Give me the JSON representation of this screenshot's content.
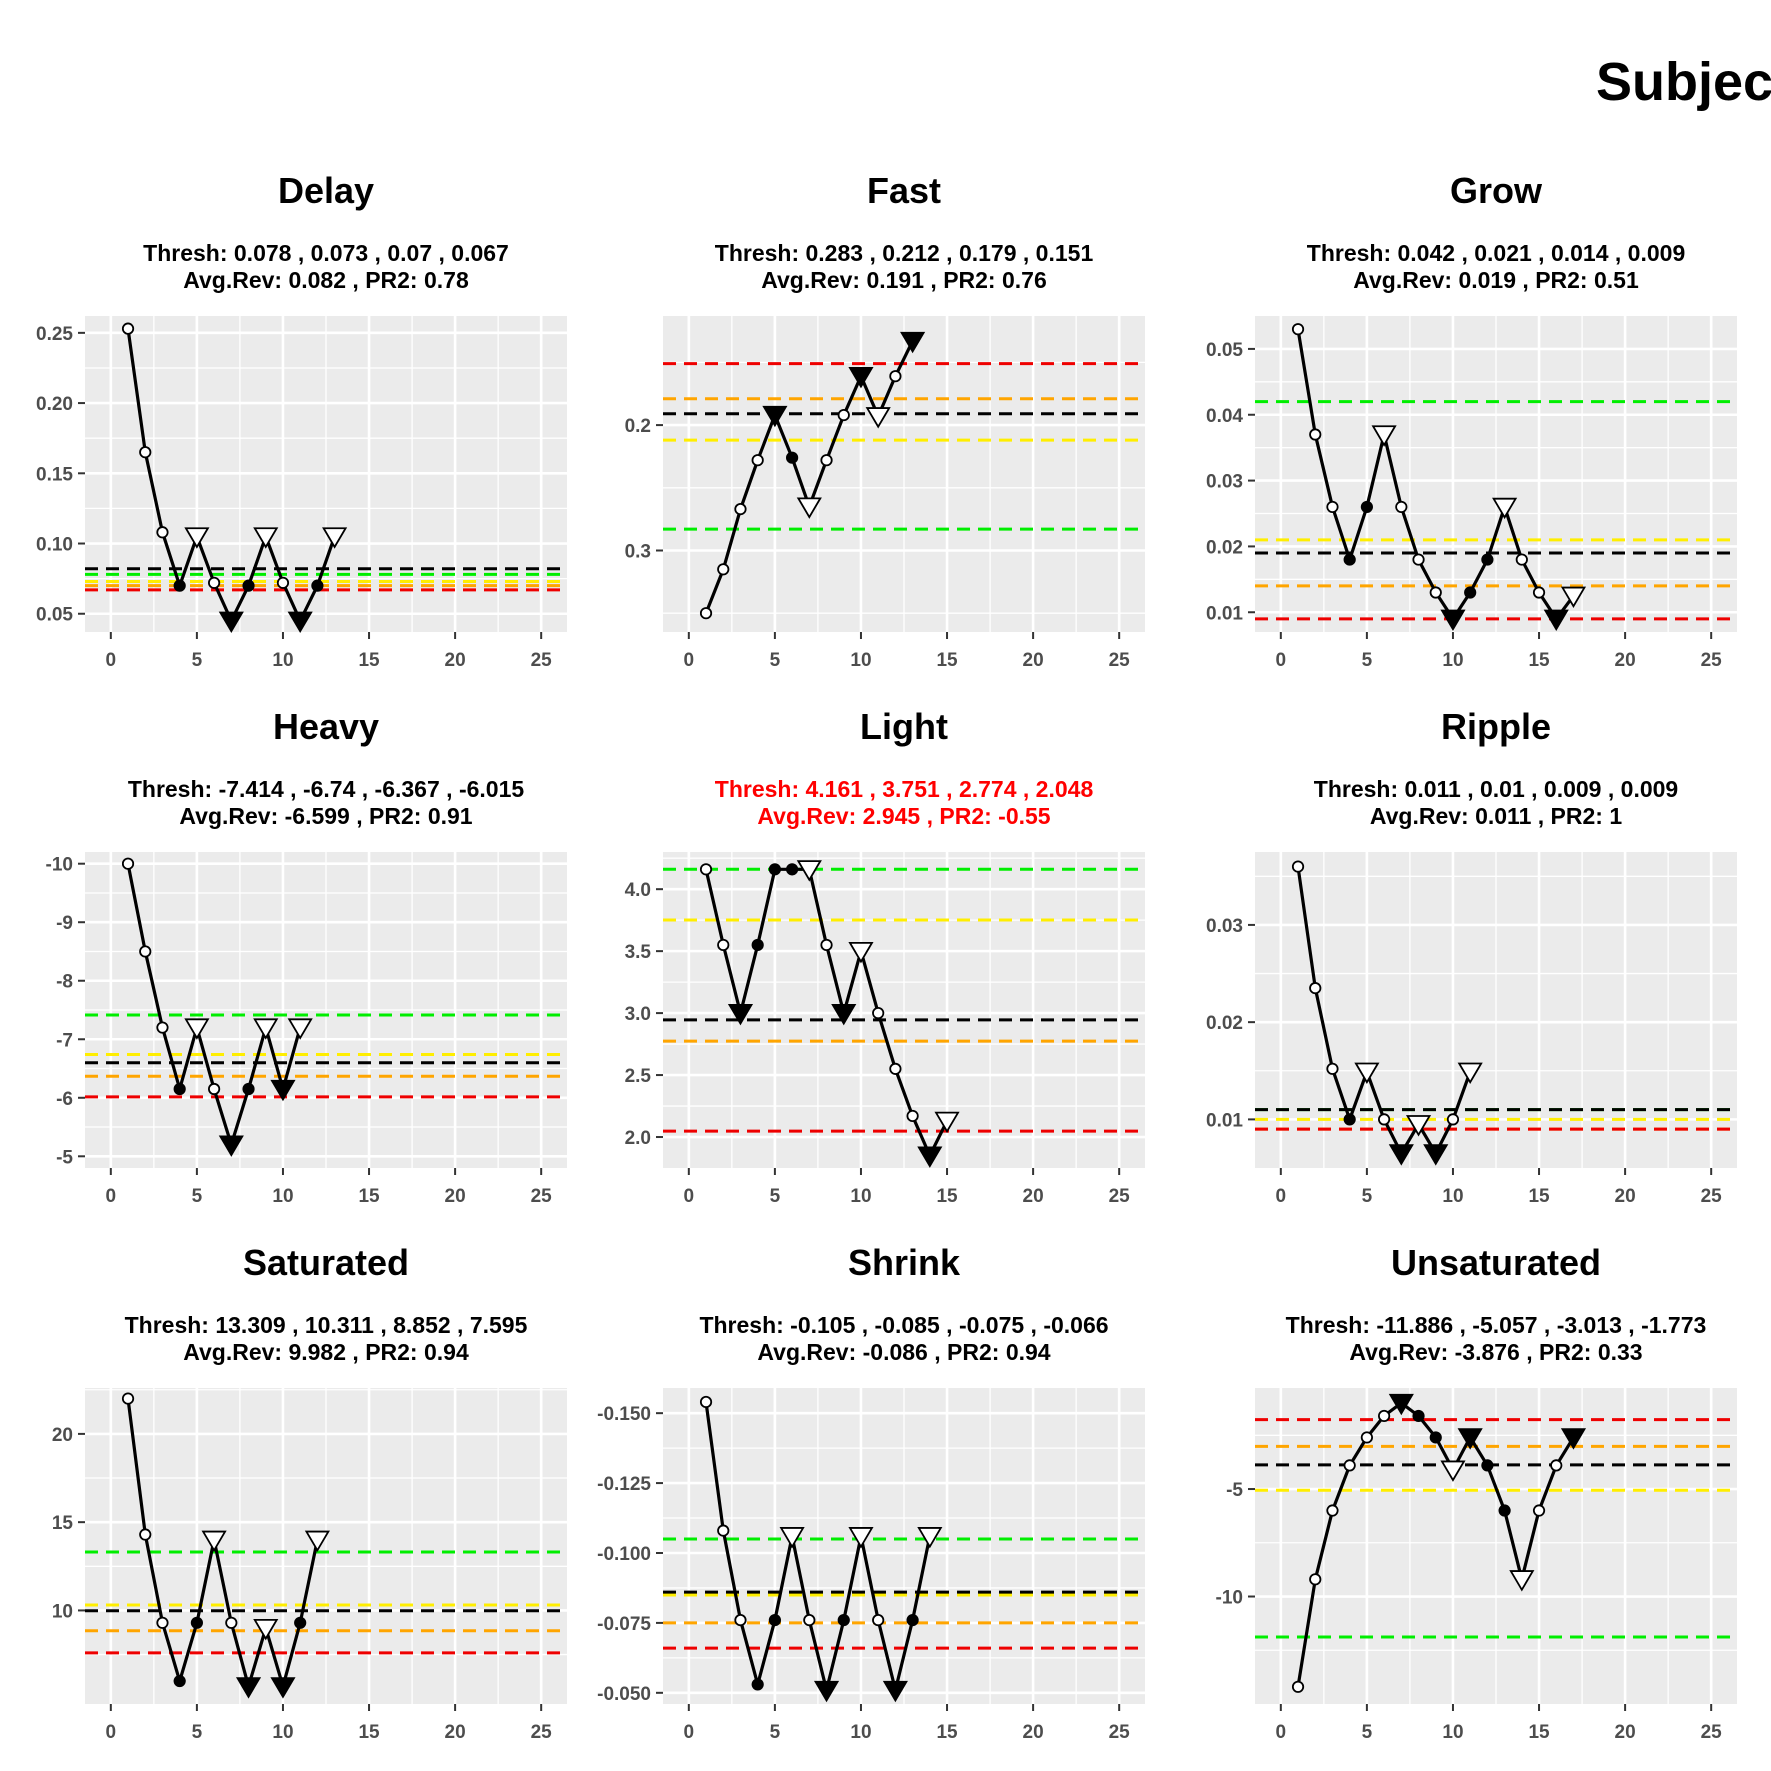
{
  "figure": {
    "title": "Subjec",
    "colors": {
      "panel_bg": "#ebebeb",
      "grid": "#ffffff",
      "line": "#000000",
      "thresholds": [
        "#00ee00",
        "#ffee00",
        "#ffa500",
        "#ee0000"
      ],
      "avg_reversal": "#000000",
      "warning_text": "#ff0000"
    },
    "marker_legend": {
      "open-circle": "trial",
      "filled-circle": "trial",
      "open-triangle-down": "reversal",
      "filled-triangle-down": "reversal"
    }
  },
  "chart_data": [
    {
      "type": "line",
      "title": "Delay",
      "subtitle1": "Thresh: 0.078 , 0.073 , 0.07 , 0.067",
      "subtitle2": "Avg.Rev: 0.082 , PR2: 0.78",
      "warning": false,
      "xlim": [
        -1.5,
        26.5
      ],
      "ylim": [
        0.037,
        0.262
      ],
      "yreverse": false,
      "xticks": [
        0,
        5,
        10,
        15,
        20,
        25
      ],
      "yticks": [
        0.05,
        0.1,
        0.15,
        0.2,
        0.25
      ],
      "yticklabels": [
        "0.05",
        "0.10",
        "0.15",
        "0.20",
        "0.25"
      ],
      "thresholds": [
        0.078,
        0.073,
        0.07,
        0.067
      ],
      "avg_reversal": 0.082,
      "points": [
        {
          "x": 1,
          "y": 0.253,
          "m": "oc"
        },
        {
          "x": 2,
          "y": 0.165,
          "m": "oc"
        },
        {
          "x": 3,
          "y": 0.108,
          "m": "oc"
        },
        {
          "x": 4,
          "y": 0.07,
          "m": "fc"
        },
        {
          "x": 5,
          "y": 0.105,
          "m": "ot"
        },
        {
          "x": 6,
          "y": 0.072,
          "m": "oc"
        },
        {
          "x": 7,
          "y": 0.045,
          "m": "ft"
        },
        {
          "x": 8,
          "y": 0.07,
          "m": "fc"
        },
        {
          "x": 9,
          "y": 0.105,
          "m": "ot"
        },
        {
          "x": 10,
          "y": 0.072,
          "m": "oc"
        },
        {
          "x": 11,
          "y": 0.045,
          "m": "ft"
        },
        {
          "x": 12,
          "y": 0.07,
          "m": "fc"
        },
        {
          "x": 13,
          "y": 0.105,
          "m": "ot"
        }
      ]
    },
    {
      "type": "line",
      "title": "Fast",
      "subtitle1": "Thresh: 0.283 , 0.212 , 0.179 , 0.151",
      "subtitle2": "Avg.Rev: 0.191 , PR2: 0.76",
      "warning": false,
      "xlim": [
        -1.5,
        26.5
      ],
      "ylim": [
        0.113,
        0.365
      ],
      "yreverse": true,
      "xticks": [
        0,
        5,
        10,
        15,
        20,
        25
      ],
      "yticks": [
        0.2,
        0.3
      ],
      "yticklabels": [
        "0.2",
        "0.3"
      ],
      "thresholds": [
        0.283,
        0.212,
        0.179,
        0.151
      ],
      "avg_reversal": 0.191,
      "points": [
        {
          "x": 1,
          "y": 0.35,
          "m": "oc"
        },
        {
          "x": 2,
          "y": 0.315,
          "m": "oc"
        },
        {
          "x": 3,
          "y": 0.267,
          "m": "oc"
        },
        {
          "x": 4,
          "y": 0.228,
          "m": "oc"
        },
        {
          "x": 5,
          "y": 0.192,
          "m": "ft"
        },
        {
          "x": 6,
          "y": 0.226,
          "m": "fc"
        },
        {
          "x": 7,
          "y": 0.265,
          "m": "ot"
        },
        {
          "x": 8,
          "y": 0.228,
          "m": "oc"
        },
        {
          "x": 9,
          "y": 0.192,
          "m": "oc"
        },
        {
          "x": 10,
          "y": 0.161,
          "m": "ft"
        },
        {
          "x": 11,
          "y": 0.193,
          "m": "ot"
        },
        {
          "x": 12,
          "y": 0.161,
          "m": "oc"
        },
        {
          "x": 13,
          "y": 0.133,
          "m": "ft"
        }
      ]
    },
    {
      "type": "line",
      "title": "Grow",
      "subtitle1": "Thresh: 0.042 , 0.021 , 0.014 , 0.009",
      "subtitle2": "Avg.Rev: 0.019 , PR2: 0.51",
      "warning": false,
      "xlim": [
        -1.5,
        26.5
      ],
      "ylim": [
        0.007,
        0.055
      ],
      "yreverse": false,
      "xticks": [
        0,
        5,
        10,
        15,
        20,
        25
      ],
      "yticks": [
        0.01,
        0.02,
        0.03,
        0.04,
        0.05
      ],
      "yticklabels": [
        "0.01",
        "0.02",
        "0.03",
        "0.04",
        "0.05"
      ],
      "thresholds": [
        0.042,
        0.021,
        0.014,
        0.009
      ],
      "avg_reversal": 0.019,
      "points": [
        {
          "x": 1,
          "y": 0.053,
          "m": "oc"
        },
        {
          "x": 2,
          "y": 0.037,
          "m": "oc"
        },
        {
          "x": 3,
          "y": 0.026,
          "m": "oc"
        },
        {
          "x": 4,
          "y": 0.018,
          "m": "fc"
        },
        {
          "x": 5,
          "y": 0.026,
          "m": "fc"
        },
        {
          "x": 6,
          "y": 0.037,
          "m": "ot"
        },
        {
          "x": 7,
          "y": 0.026,
          "m": "oc"
        },
        {
          "x": 8,
          "y": 0.018,
          "m": "oc"
        },
        {
          "x": 9,
          "y": 0.013,
          "m": "oc"
        },
        {
          "x": 10,
          "y": 0.009,
          "m": "ft"
        },
        {
          "x": 11,
          "y": 0.013,
          "m": "fc"
        },
        {
          "x": 12,
          "y": 0.018,
          "m": "fc"
        },
        {
          "x": 13,
          "y": 0.026,
          "m": "ot"
        },
        {
          "x": 14,
          "y": 0.018,
          "m": "oc"
        },
        {
          "x": 15,
          "y": 0.013,
          "m": "oc"
        },
        {
          "x": 16,
          "y": 0.009,
          "m": "ft"
        },
        {
          "x": 17,
          "y": 0.0125,
          "m": "ot"
        }
      ]
    },
    {
      "type": "line",
      "title": "Heavy",
      "subtitle1": "Thresh: -7.414 , -6.74 , -6.367 , -6.015",
      "subtitle2": "Avg.Rev: -6.599 , PR2: 0.91",
      "warning": false,
      "xlim": [
        -1.5,
        26.5
      ],
      "ylim": [
        -10.2,
        -4.8
      ],
      "yreverse": true,
      "xticks": [
        0,
        5,
        10,
        15,
        20,
        25
      ],
      "yticks": [
        -10,
        -9,
        -8,
        -7,
        -6,
        -5
      ],
      "yticklabels": [
        "-10",
        "-9",
        "-8",
        "-7",
        "-6",
        "-5"
      ],
      "thresholds": [
        -7.414,
        -6.74,
        -6.367,
        -6.015
      ],
      "avg_reversal": -6.599,
      "points": [
        {
          "x": 1,
          "y": -10.0,
          "m": "oc"
        },
        {
          "x": 2,
          "y": -8.5,
          "m": "oc"
        },
        {
          "x": 3,
          "y": -7.2,
          "m": "oc"
        },
        {
          "x": 4,
          "y": -6.15,
          "m": "fc"
        },
        {
          "x": 5,
          "y": -7.2,
          "m": "ot"
        },
        {
          "x": 6,
          "y": -6.15,
          "m": "oc"
        },
        {
          "x": 7,
          "y": -5.2,
          "m": "ft"
        },
        {
          "x": 8,
          "y": -6.15,
          "m": "fc"
        },
        {
          "x": 9,
          "y": -7.2,
          "m": "ot"
        },
        {
          "x": 10,
          "y": -6.15,
          "m": "ft"
        },
        {
          "x": 11,
          "y": -7.2,
          "m": "ot"
        }
      ]
    },
    {
      "type": "line",
      "title": "Light",
      "subtitle1": "Thresh: 4.161 , 3.751 , 2.774 , 2.048",
      "subtitle2": "Avg.Rev: 2.945 , PR2: -0.55",
      "warning": true,
      "xlim": [
        -1.5,
        26.5
      ],
      "ylim": [
        1.75,
        4.3
      ],
      "yreverse": false,
      "xticks": [
        0,
        5,
        10,
        15,
        20,
        25
      ],
      "yticks": [
        2.0,
        2.5,
        3.0,
        3.5,
        4.0
      ],
      "yticklabels": [
        "2.0",
        "2.5",
        "3.0",
        "3.5",
        "4.0"
      ],
      "thresholds": [
        4.161,
        3.751,
        2.774,
        2.048
      ],
      "avg_reversal": 2.945,
      "points": [
        {
          "x": 1,
          "y": 4.16,
          "m": "oc"
        },
        {
          "x": 2,
          "y": 3.55,
          "m": "oc"
        },
        {
          "x": 3,
          "y": 3.0,
          "m": "ft"
        },
        {
          "x": 4,
          "y": 3.55,
          "m": "fc"
        },
        {
          "x": 5,
          "y": 4.16,
          "m": "fc"
        },
        {
          "x": 6,
          "y": 4.16,
          "m": "fc"
        },
        {
          "x": 7,
          "y": 4.16,
          "m": "ot"
        },
        {
          "x": 8,
          "y": 3.55,
          "m": "oc"
        },
        {
          "x": 9,
          "y": 3.0,
          "m": "ft"
        },
        {
          "x": 10,
          "y": 3.5,
          "m": "ot"
        },
        {
          "x": 11,
          "y": 3.0,
          "m": "oc"
        },
        {
          "x": 12,
          "y": 2.55,
          "m": "oc"
        },
        {
          "x": 13,
          "y": 2.17,
          "m": "oc"
        },
        {
          "x": 14,
          "y": 1.85,
          "m": "ft"
        },
        {
          "x": 15,
          "y": 2.13,
          "m": "ot"
        }
      ]
    },
    {
      "type": "line",
      "title": "Ripple",
      "subtitle1": "Thresh: 0.011 , 0.01 , 0.009 , 0.009",
      "subtitle2": "Avg.Rev: 0.011 , PR2: 1",
      "warning": false,
      "xlim": [
        -1.5,
        26.5
      ],
      "ylim": [
        0.005,
        0.0375
      ],
      "yreverse": false,
      "xticks": [
        0,
        5,
        10,
        15,
        20,
        25
      ],
      "yticks": [
        0.01,
        0.02,
        0.03
      ],
      "yticklabels": [
        "0.01",
        "0.02",
        "0.03"
      ],
      "thresholds": [
        0.011,
        0.01,
        0.009,
        0.009
      ],
      "avg_reversal": 0.011,
      "points": [
        {
          "x": 1,
          "y": 0.036,
          "m": "oc"
        },
        {
          "x": 2,
          "y": 0.0235,
          "m": "oc"
        },
        {
          "x": 3,
          "y": 0.0152,
          "m": "oc"
        },
        {
          "x": 4,
          "y": 0.01,
          "m": "fc"
        },
        {
          "x": 5,
          "y": 0.0149,
          "m": "ot"
        },
        {
          "x": 6,
          "y": 0.01,
          "m": "oc"
        },
        {
          "x": 7,
          "y": 0.0065,
          "m": "ft"
        },
        {
          "x": 8,
          "y": 0.0095,
          "m": "ot"
        },
        {
          "x": 9,
          "y": 0.0065,
          "m": "ft"
        },
        {
          "x": 10,
          "y": 0.01,
          "m": "oc"
        },
        {
          "x": 11,
          "y": 0.0149,
          "m": "ot"
        }
      ]
    },
    {
      "type": "line",
      "title": "Saturated",
      "subtitle1": "Thresh: 13.309 , 10.311 , 8.852 , 7.595",
      "subtitle2": "Avg.Rev: 9.982 , PR2: 0.94",
      "warning": false,
      "xlim": [
        -1.5,
        26.5
      ],
      "ylim": [
        4.7,
        22.6
      ],
      "yreverse": false,
      "xticks": [
        0,
        5,
        10,
        15,
        20,
        25
      ],
      "yticks": [
        10,
        15,
        20
      ],
      "yticklabels": [
        "10",
        "15",
        "20"
      ],
      "thresholds": [
        13.309,
        10.311,
        8.852,
        7.595
      ],
      "avg_reversal": 9.982,
      "points": [
        {
          "x": 1,
          "y": 22.0,
          "m": "oc"
        },
        {
          "x": 2,
          "y": 14.3,
          "m": "oc"
        },
        {
          "x": 3,
          "y": 9.3,
          "m": "oc"
        },
        {
          "x": 4,
          "y": 6.0,
          "m": "fc"
        },
        {
          "x": 5,
          "y": 9.3,
          "m": "fc"
        },
        {
          "x": 6,
          "y": 14.0,
          "m": "ot"
        },
        {
          "x": 7,
          "y": 9.3,
          "m": "oc"
        },
        {
          "x": 8,
          "y": 5.7,
          "m": "ft"
        },
        {
          "x": 9,
          "y": 9.0,
          "m": "ot"
        },
        {
          "x": 10,
          "y": 5.7,
          "m": "ft"
        },
        {
          "x": 11,
          "y": 9.3,
          "m": "fc"
        },
        {
          "x": 12,
          "y": 14.0,
          "m": "ot"
        }
      ]
    },
    {
      "type": "line",
      "title": "Shrink",
      "subtitle1": "Thresh: -0.105 , -0.085 , -0.075 , -0.066",
      "subtitle2": "Avg.Rev: -0.086 , PR2: 0.94",
      "warning": false,
      "xlim": [
        -1.5,
        26.5
      ],
      "ylim": [
        -0.159,
        -0.046
      ],
      "yreverse": true,
      "xticks": [
        0,
        5,
        10,
        15,
        20,
        25
      ],
      "yticks": [
        -0.15,
        -0.125,
        -0.1,
        -0.075,
        -0.05
      ],
      "yticklabels": [
        "-0.150",
        "-0.125",
        "-0.100",
        "-0.075",
        "-0.050"
      ],
      "thresholds": [
        -0.105,
        -0.085,
        -0.075,
        -0.066
      ],
      "avg_reversal": -0.086,
      "points": [
        {
          "x": 1,
          "y": -0.154,
          "m": "oc"
        },
        {
          "x": 2,
          "y": -0.108,
          "m": "oc"
        },
        {
          "x": 3,
          "y": -0.076,
          "m": "oc"
        },
        {
          "x": 4,
          "y": -0.053,
          "m": "fc"
        },
        {
          "x": 5,
          "y": -0.076,
          "m": "fc"
        },
        {
          "x": 6,
          "y": -0.106,
          "m": "ot"
        },
        {
          "x": 7,
          "y": -0.076,
          "m": "oc"
        },
        {
          "x": 8,
          "y": -0.051,
          "m": "ft"
        },
        {
          "x": 9,
          "y": -0.076,
          "m": "fc"
        },
        {
          "x": 10,
          "y": -0.106,
          "m": "ot"
        },
        {
          "x": 11,
          "y": -0.076,
          "m": "oc"
        },
        {
          "x": 12,
          "y": -0.051,
          "m": "ft"
        },
        {
          "x": 13,
          "y": -0.076,
          "m": "fc"
        },
        {
          "x": 14,
          "y": -0.106,
          "m": "ot"
        }
      ]
    },
    {
      "type": "line",
      "title": "Unsaturated",
      "subtitle1": "Thresh: -11.886 , -5.057 , -3.013 , -1.773",
      "subtitle2": "Avg.Rev: -3.876 , PR2: 0.33",
      "warning": false,
      "xlim": [
        -1.5,
        26.5
      ],
      "ylim": [
        -15.0,
        -0.3
      ],
      "yreverse": false,
      "xticks": [
        0,
        5,
        10,
        15,
        20,
        25
      ],
      "yticks": [
        -10,
        -5
      ],
      "yticklabels": [
        "-10",
        "-5"
      ],
      "thresholds": [
        -11.886,
        -5.057,
        -3.013,
        -1.773
      ],
      "avg_reversal": -3.876,
      "points": [
        {
          "x": 1,
          "y": -14.2,
          "m": "oc"
        },
        {
          "x": 2,
          "y": -9.2,
          "m": "oc"
        },
        {
          "x": 3,
          "y": -6.0,
          "m": "oc"
        },
        {
          "x": 4,
          "y": -3.9,
          "m": "oc"
        },
        {
          "x": 5,
          "y": -2.6,
          "m": "oc"
        },
        {
          "x": 6,
          "y": -1.6,
          "m": "oc"
        },
        {
          "x": 7,
          "y": -1.0,
          "m": "ft"
        },
        {
          "x": 8,
          "y": -1.6,
          "m": "fc"
        },
        {
          "x": 9,
          "y": -2.6,
          "m": "fc"
        },
        {
          "x": 10,
          "y": -4.1,
          "m": "ot"
        },
        {
          "x": 11,
          "y": -2.6,
          "m": "ft"
        },
        {
          "x": 12,
          "y": -3.9,
          "m": "fc"
        },
        {
          "x": 13,
          "y": -6.0,
          "m": "fc"
        },
        {
          "x": 14,
          "y": -9.2,
          "m": "ot"
        },
        {
          "x": 15,
          "y": -6.0,
          "m": "oc"
        },
        {
          "x": 16,
          "y": -3.9,
          "m": "oc"
        },
        {
          "x": 17,
          "y": -2.6,
          "m": "ft"
        }
      ]
    }
  ]
}
